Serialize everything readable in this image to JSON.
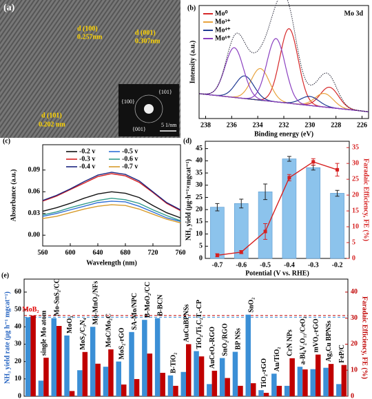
{
  "image_panel": {
    "panel_label": "(a)",
    "annotations": [
      "d (100)",
      "0.257nm",
      "d (001)",
      "0.307nm",
      "d (101)",
      "0.202 nm"
    ],
    "inset_labels": [
      "{101}",
      "{100}",
      "{001}"
    ],
    "scale_bar": "5 1/nm"
  },
  "chart_data": [
    {
      "type": "xps",
      "panel_label": "(b)",
      "title": "Mo 3d",
      "xlabel": "Binding energy (eV)",
      "ylabel": "Intensity (a.u.)",
      "xlim": [
        238.5,
        225.5
      ],
      "xticks": [
        238,
        236,
        234,
        232,
        230,
        228,
        226
      ],
      "ylim": [
        0,
        100
      ],
      "background": {
        "color": "#7b3fb0",
        "x": [
          238.5,
          225.5
        ],
        "values": [
          22,
          6
        ]
      },
      "series": [
        {
          "name": "Mo⁰",
          "color": "#d62728",
          "centers": [
            231.6,
            228.5
          ],
          "heights": [
            66,
            18
          ]
        },
        {
          "name": "Mo³⁺",
          "color": "#e8a33d",
          "centers": [
            233.8,
            228.9
          ],
          "heights": [
            28,
            12
          ]
        },
        {
          "name": "Mo⁴⁺",
          "color": "#1f3a93",
          "centers": [
            235.0,
            230.0
          ],
          "heights": [
            20,
            8
          ]
        },
        {
          "name": "Mo⁶⁺",
          "color": "#8a3fc0",
          "centers": [
            232.6,
            235.8
          ],
          "heights": [
            56,
            44
          ]
        }
      ]
    },
    {
      "type": "line",
      "panel_label": "(c)",
      "xlabel": "Wavelength (nm)",
      "ylabel": "Absorbance (a.u.)",
      "xlim": [
        560,
        760
      ],
      "xticks": [
        560,
        600,
        640,
        680,
        720,
        760
      ],
      "ylim": [
        -0.015,
        0.125
      ],
      "yticks": [
        {
          "value": 0,
          "label": "0.00"
        },
        {
          "value": 0.03,
          "label": "0.03"
        },
        {
          "value": 0.06,
          "label": "0.06"
        },
        {
          "value": 0.09,
          "label": "0.09"
        }
      ],
      "x": [
        560,
        580,
        600,
        620,
        640,
        660,
        680,
        700,
        720,
        740,
        760
      ],
      "series": [
        {
          "name": "-0.2 v",
          "color": "#111111",
          "values": [
            0.033,
            0.038,
            0.044,
            0.051,
            0.057,
            0.06,
            0.058,
            0.052,
            0.041,
            0.031,
            0.024
          ]
        },
        {
          "name": "-0.3 v",
          "color": "#d62020",
          "values": [
            0.047,
            0.054,
            0.063,
            0.072,
            0.081,
            0.085,
            0.082,
            0.073,
            0.059,
            0.044,
            0.034
          ]
        },
        {
          "name": "-0.4 v",
          "color": "#1a237e",
          "values": [
            0.048,
            0.055,
            0.064,
            0.074,
            0.083,
            0.087,
            0.084,
            0.075,
            0.06,
            0.045,
            0.035
          ]
        },
        {
          "name": "-0.5 v",
          "color": "#2f6fd6",
          "values": [
            0.026,
            0.03,
            0.035,
            0.04,
            0.045,
            0.047,
            0.046,
            0.04,
            0.032,
            0.024,
            0.019
          ]
        },
        {
          "name": "-0.6 v",
          "color": "#2f9a8a",
          "values": [
            0.028,
            0.032,
            0.038,
            0.043,
            0.048,
            0.051,
            0.049,
            0.044,
            0.035,
            0.027,
            0.02
          ]
        },
        {
          "name": "-0.7 v",
          "color": "#d79b2a",
          "values": [
            0.023,
            0.026,
            0.031,
            0.036,
            0.04,
            0.042,
            0.041,
            0.036,
            0.029,
            0.022,
            0.017
          ]
        }
      ]
    },
    {
      "type": "bar_line",
      "panel_label": "(d)",
      "xlabel": "Potential (V vs. RHE)",
      "ylabel": "NH₃ yield (μg·h⁻¹×mgcat⁻¹)",
      "y2label": "Faradaic Efficiency, FE (%)",
      "categories": [
        "-0.7",
        "-0.6",
        "-0.5",
        "-0.4",
        "-0.3",
        "-0.2"
      ],
      "ylim": [
        0,
        48
      ],
      "yticks": [
        0,
        5,
        10,
        15,
        20,
        25,
        30,
        35,
        40,
        45
      ],
      "y2lim": [
        0,
        37
      ],
      "y2ticks": [
        0,
        5,
        10,
        15,
        20,
        25,
        30,
        35
      ],
      "series": [
        {
          "type": "bar",
          "color": "#8cc3ec",
          "values": [
            21,
            22.5,
            27.3,
            40.8,
            37.2,
            26.7
          ],
          "errors": [
            1.5,
            1.8,
            3.2,
            1.0,
            1.0,
            1.2
          ]
        },
        {
          "type": "line",
          "axis": "y2",
          "color": "#d62020",
          "values": [
            1,
            2,
            8.5,
            25.5,
            30.5,
            28
          ],
          "errors": [
            0.5,
            0.5,
            2.5,
            1.0,
            1.0,
            2.0
          ]
        }
      ]
    },
    {
      "type": "grouped_bar",
      "panel_label": "(e)",
      "ylabel": "NH₃ yield rate (μg h⁻¹ mgcat⁻¹)",
      "y2label": "Faradaic Efficiency, FE (%)",
      "categories": [
        "MoB₂",
        "single Mo atom",
        "Mo-SnS₂/CC",
        "MoO₃",
        "MoS₂/C₃N₄",
        "Mo-MnO₂/NFs",
        "MoC/Mo₂C",
        "MoS₂-rGO",
        "SA-Mo/NPC",
        "B-MoO₂/CC",
        "B-BCN",
        "B-TiO₂",
        "AuCuBPNSs",
        "TiO₂/Ti₃C₂Tₓ-CP",
        "AuCeOₓ-RGO",
        "SnO₂/RGO",
        "BP NSs",
        "SnO₂",
        "TiO₂-rGO",
        "Au/TiO₂",
        "CrN NPs",
        "a-Bi₄V₂O₁₁/CeO₂",
        "mVOₓ-rGO",
        "Ag₃Cu BPNSs",
        "FeP/C"
      ],
      "ylim": [
        0,
        67.5
      ],
      "yticks": [
        0,
        10,
        20,
        30,
        40,
        50,
        60
      ],
      "y2lim": [
        0,
        45
      ],
      "y2ticks": [
        0,
        10,
        20,
        30,
        40
      ],
      "series": [
        {
          "color": "#3b8fd6",
          "values": [
            45.5,
            9,
            45,
            35,
            15,
            40,
            17,
            20,
            37,
            44,
            45,
            12,
            14,
            26,
            7,
            22,
            25.6,
            47,
            3.5,
            13,
            6,
            17,
            15.6,
            16.4,
            7
          ]
        },
        {
          "color": "#c00000",
          "axis": "y2",
          "values": [
            31,
            14.8,
            27,
            2,
            17,
            12.5,
            18,
            4.5,
            6.6,
            16.4,
            9,
            4,
            20,
            15.3,
            9.8,
            7,
            4,
            5,
            1.3,
            4,
            14.6,
            10.3,
            16,
            12.4,
            12
          ]
        }
      ]
    }
  ]
}
